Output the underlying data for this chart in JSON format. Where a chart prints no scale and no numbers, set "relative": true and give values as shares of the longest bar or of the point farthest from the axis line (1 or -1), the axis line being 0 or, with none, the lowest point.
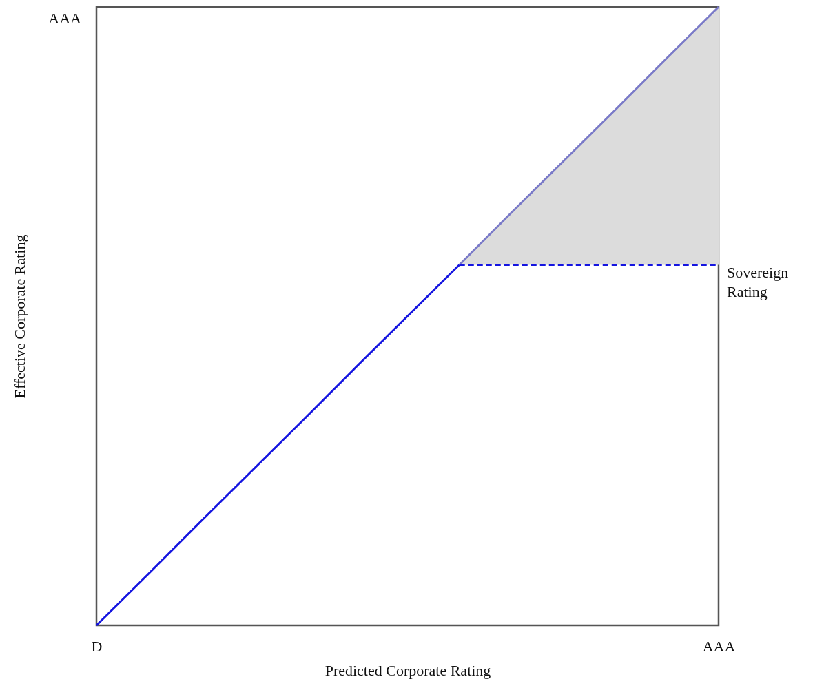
{
  "chart_data": {
    "type": "line",
    "xlabel": "Predicted Corporate Rating",
    "ylabel": "Effective Corporate Rating",
    "relative": true,
    "grid": false,
    "legend": false,
    "annotations": [
      "AAA"
    ],
    "categories": [
      "D",
      null,
      null,
      null,
      null,
      null,
      null,
      null,
      null,
      null,
      null,
      null,
      "AAA"
    ],
    "series": [
      {
        "color": "#1515e0",
        "values": [
          0,
          0.083,
          0.167,
          0.25,
          0.333,
          0.417,
          0.5,
          0.583,
          null,
          null,
          null,
          null,
          null
        ],
        "line_style": "solid"
      },
      {
        "color": "#7a7ac8",
        "values": [
          null,
          null,
          null,
          null,
          null,
          null,
          null,
          0.583,
          0.667,
          0.75,
          0.833,
          0.917,
          1
        ],
        "lower": [
          null,
          null,
          null,
          null,
          null,
          null,
          null,
          0.583,
          0.583,
          0.583,
          0.583,
          0.583,
          0.583
        ],
        "upper": [
          null,
          null,
          null,
          null,
          null,
          null,
          null,
          0.583,
          0.667,
          0.75,
          0.833,
          0.917,
          1
        ],
        "line_style": "solid"
      },
      {
        "name": "Sovereign Rating",
        "color": "#1515e0",
        "values": [
          null,
          null,
          null,
          null,
          null,
          null,
          null,
          0.583,
          0.583,
          0.583,
          0.583,
          0.583,
          0.583
        ],
        "line_style": "dashed"
      }
    ]
  }
}
